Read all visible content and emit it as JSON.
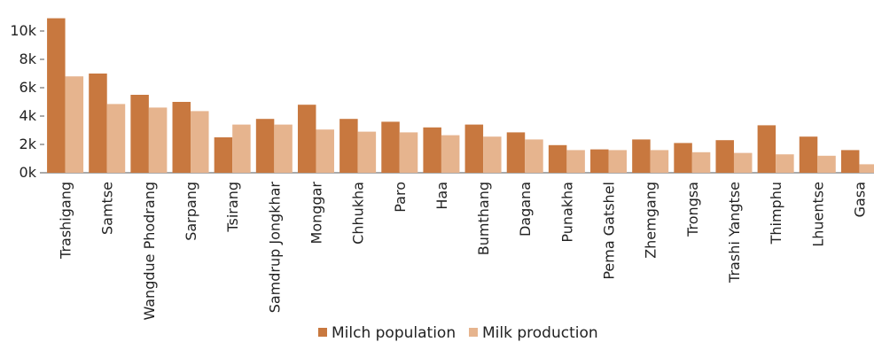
{
  "chart_data": {
    "type": "bar",
    "categories": [
      "Trashigang",
      "Samtse",
      "Wangdue Phodrang",
      "Sarpang",
      "Tsirang",
      "Samdrup Jongkhar",
      "Monggar",
      "Chhukha",
      "Paro",
      "Haa",
      "Bumthang",
      "Dagana",
      "Punakha",
      "Pema Gatshel",
      "Zhemgang",
      "Trongsa",
      "Trashi Yangtse",
      "Thimphu",
      "Lhuentse",
      "Gasa"
    ],
    "series": [
      {
        "name": "Milch population",
        "color": "#C8783F",
        "values": [
          10900,
          7000,
          5500,
          5000,
          2500,
          3800,
          4800,
          3800,
          3600,
          3200,
          3400,
          2850,
          1950,
          1650,
          2350,
          2100,
          2300,
          3350,
          2550,
          1600
        ]
      },
      {
        "name": "Milk production",
        "color": "#E6B48E",
        "values": [
          6800,
          4850,
          4600,
          4350,
          3400,
          3400,
          3050,
          2900,
          2850,
          2650,
          2550,
          2350,
          1600,
          1600,
          1600,
          1450,
          1400,
          1300,
          1200,
          600
        ]
      }
    ],
    "ylim": [
      0,
      11000
    ],
    "yticks": [
      0,
      2000,
      4000,
      6000,
      8000,
      10000
    ],
    "ytick_labels": [
      "0k",
      "2k",
      "4k",
      "6k",
      "8k",
      "10k"
    ],
    "legend_position": "bottom",
    "grid": false
  }
}
